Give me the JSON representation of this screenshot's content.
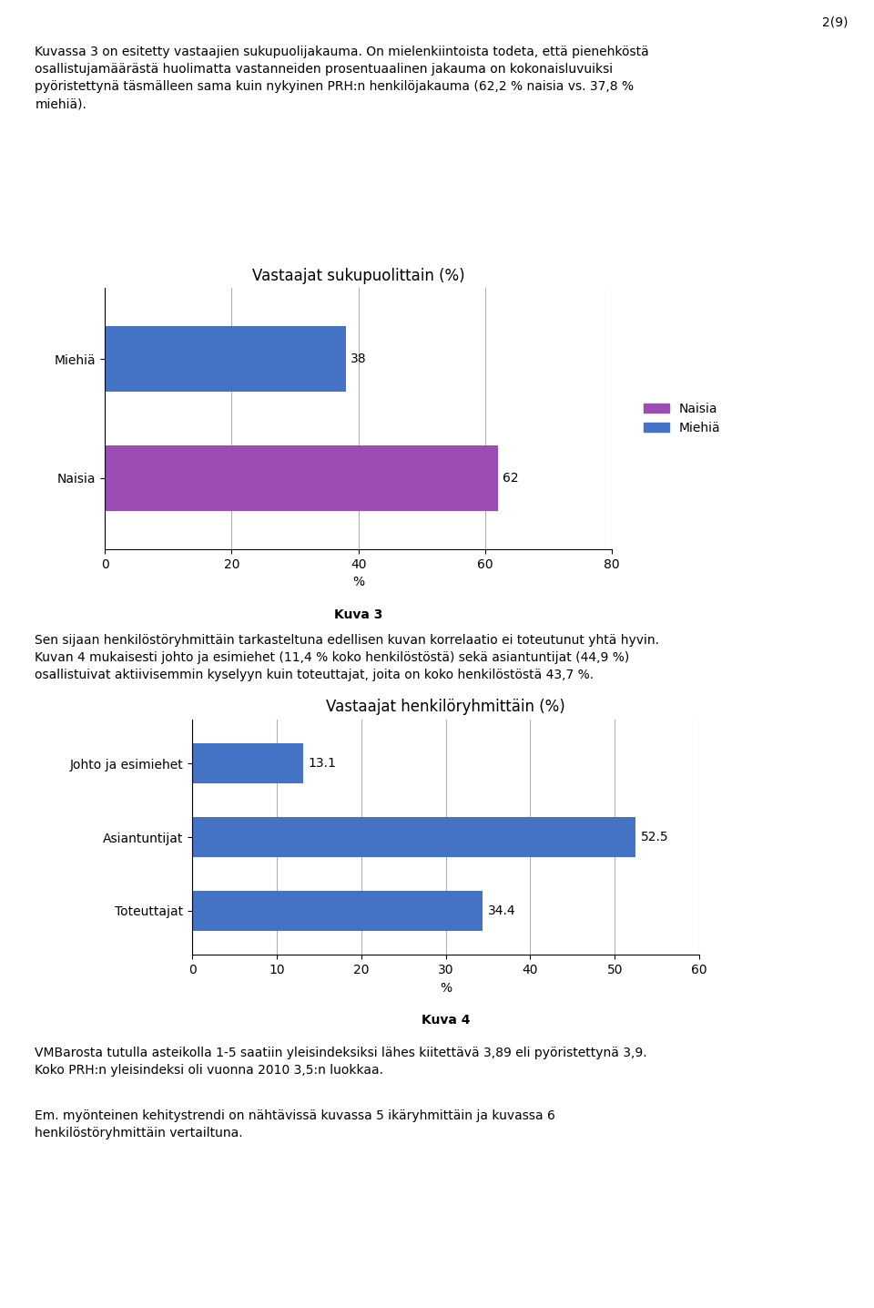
{
  "chart_data": [
    {
      "type": "bar",
      "orientation": "horizontal",
      "title": "Vastaajat sukupuolittain (%)",
      "categories": [
        "Naisia",
        "Miehiä"
      ],
      "values": [
        62,
        38
      ],
      "colors": [
        "#9B4DB5",
        "#4472C4"
      ],
      "x_label": "%",
      "xlim": [
        0,
        80
      ],
      "xticks": [
        0,
        20,
        40,
        60,
        80
      ],
      "grid": true,
      "data_labels": true,
      "legend": "center left",
      "annotations": [
        "2(9)",
        "Kuvassa 3 on esitetty vastaajien sukupuolijakauma. On mielenkiintoista todeta, että pienehköstä\nosallistujamäärästä huolimatta vastanneiden prosentuaalinen jakauma on kokonaisluvuiksi\npyöristettynä täsmälleen sama kuin nykyinen PRH:n henkilöjakauma (62,2 % naisia vs. 37,8 %\nmiehiä).",
        "Kuva 3"
      ]
    },
    {
      "type": "bar",
      "orientation": "horizontal",
      "title": "Vastaajat henkilöryhmittäin (%)",
      "categories": [
        "Toteuttajat",
        "Asiantuntijat",
        "Johto ja esimiehet"
      ],
      "values": [
        34.4,
        52.5,
        13.1
      ],
      "color": "#4472C4",
      "x_label": "%",
      "xlim": [
        0,
        60
      ],
      "xticks": [
        0,
        10,
        20,
        30,
        40,
        50,
        60
      ],
      "grid": true,
      "data_labels": true,
      "annotations": [
        "Sen sijaan henkilöstöryhmittäin tarkasteltuna edellisen kuvan korrelaatio ei toteutunut yhtä hyvin.\nKuvan 4 mukaisesti johto ja esimiehet (11,4 % koko henkilöstöstä) sekä asiantuntijat (44,9 %)\nosallistuivat aktiivisemmin kyselyyn kuin toteuttajat, joita on koko henkilöstöstä 43,7 %.",
        "Kuva 4",
        "VMBarosta tutulla asteikolla 1-5 saatiin yleisindeksiksi lähes kiitettävä 3,89 eli pyöristettynä 3,9.\nKoko PRH:n yleisindeksi oli vuonna 2010 3,5:n luokkaa.",
        "Em. myönteinen kehitystrendi on nähtävissä kuvassa 5 ikäryhmittäin ja kuvassa 6\nhenkilöstöryhmittäin vertailtuna."
      ]
    }
  ]
}
